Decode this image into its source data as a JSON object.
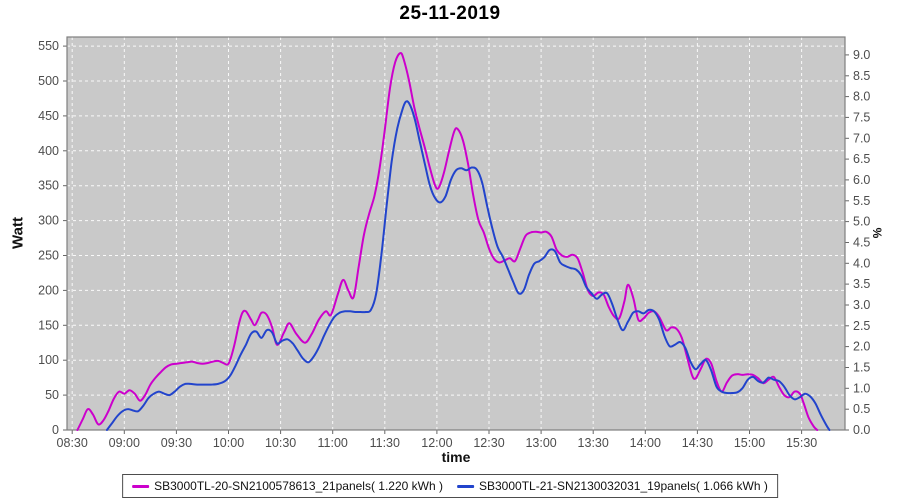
{
  "chart_data": {
    "type": "line",
    "title": "25-11-2019",
    "xlabel": "time",
    "ylabel_left": "Watt",
    "ylabel_right": "%",
    "grid": "white dashed, on",
    "legend_position": "bottom-center",
    "plot_bg_color": "#c9c9c9",
    "plot_border_color": "#7f7f7f",
    "tick_text_color": "#4d4d4d",
    "x_domain": [
      "08:27",
      "15:55"
    ],
    "y_left_domain": [
      0,
      563
    ],
    "y_right_domain": [
      0,
      9.43
    ],
    "x_ticks": [
      "08:30",
      "09:00",
      "09:30",
      "10:00",
      "10:30",
      "11:00",
      "11:30",
      "12:00",
      "12:30",
      "13:00",
      "13:30",
      "14:00",
      "14:30",
      "15:00",
      "15:30"
    ],
    "y_left_ticks": [
      0,
      50,
      100,
      150,
      200,
      250,
      300,
      350,
      400,
      450,
      500,
      550
    ],
    "y_right_ticks": [
      "0.0",
      "0.5",
      "1.0",
      "1.5",
      "2.0",
      "2.5",
      "3.0",
      "3.5",
      "4.0",
      "4.5",
      "5.0",
      "5.5",
      "6.0",
      "6.5",
      "7.0",
      "7.5",
      "8.0",
      "8.5",
      "9.0"
    ],
    "series": [
      {
        "name": "SB3000TL-20-SN2100578613_21panels( 1.220 kWh )",
        "color": "#cc00cc",
        "points": [
          [
            "08:33",
            0
          ],
          [
            "08:36",
            15
          ],
          [
            "08:39",
            30
          ],
          [
            "08:42",
            22
          ],
          [
            "08:45",
            8
          ],
          [
            "08:48",
            14
          ],
          [
            "08:51",
            28
          ],
          [
            "08:54",
            45
          ],
          [
            "08:57",
            55
          ],
          [
            "09:00",
            52
          ],
          [
            "09:03",
            57
          ],
          [
            "09:06",
            52
          ],
          [
            "09:09",
            42
          ],
          [
            "09:12",
            50
          ],
          [
            "09:15",
            65
          ],
          [
            "09:18",
            75
          ],
          [
            "09:21",
            83
          ],
          [
            "09:24",
            90
          ],
          [
            "09:27",
            94
          ],
          [
            "09:30",
            95
          ],
          [
            "09:33",
            96
          ],
          [
            "09:36",
            97
          ],
          [
            "09:39",
            98
          ],
          [
            "09:42",
            96
          ],
          [
            "09:45",
            95
          ],
          [
            "09:48",
            96
          ],
          [
            "09:51",
            98
          ],
          [
            "09:54",
            99
          ],
          [
            "09:57",
            96
          ],
          [
            "10:00",
            95
          ],
          [
            "10:03",
            118
          ],
          [
            "10:06",
            152
          ],
          [
            "10:08",
            168
          ],
          [
            "10:10",
            170
          ],
          [
            "10:13",
            158
          ],
          [
            "10:15",
            150
          ],
          [
            "10:17",
            158
          ],
          [
            "10:19",
            168
          ],
          [
            "10:22",
            165
          ],
          [
            "10:25",
            148
          ],
          [
            "10:28",
            122
          ],
          [
            "10:32",
            140
          ],
          [
            "10:35",
            153
          ],
          [
            "10:39",
            138
          ],
          [
            "10:44",
            125
          ],
          [
            "10:48",
            138
          ],
          [
            "10:52",
            158
          ],
          [
            "10:56",
            170
          ],
          [
            "10:59",
            165
          ],
          [
            "11:03",
            195
          ],
          [
            "11:06",
            215
          ],
          [
            "11:09",
            200
          ],
          [
            "11:12",
            190
          ],
          [
            "11:15",
            235
          ],
          [
            "11:18",
            280
          ],
          [
            "11:21",
            310
          ],
          [
            "11:24",
            335
          ],
          [
            "11:27",
            375
          ],
          [
            "11:30",
            430
          ],
          [
            "11:33",
            490
          ],
          [
            "11:36",
            527
          ],
          [
            "11:39",
            540
          ],
          [
            "11:41",
            530
          ],
          [
            "11:44",
            500
          ],
          [
            "11:47",
            462
          ],
          [
            "11:50",
            432
          ],
          [
            "11:53",
            405
          ],
          [
            "11:56",
            375
          ],
          [
            "11:59",
            350
          ],
          [
            "12:01",
            347
          ],
          [
            "12:04",
            368
          ],
          [
            "12:07",
            400
          ],
          [
            "12:10",
            428
          ],
          [
            "12:12",
            431
          ],
          [
            "12:15",
            415
          ],
          [
            "12:18",
            380
          ],
          [
            "12:21",
            335
          ],
          [
            "12:24",
            300
          ],
          [
            "12:27",
            283
          ],
          [
            "12:30",
            260
          ],
          [
            "12:33",
            245
          ],
          [
            "12:36",
            240
          ],
          [
            "12:39",
            243
          ],
          [
            "12:42",
            246
          ],
          [
            "12:45",
            242
          ],
          [
            "12:48",
            260
          ],
          [
            "12:51",
            278
          ],
          [
            "12:54",
            283
          ],
          [
            "12:57",
            284
          ],
          [
            "13:00",
            283
          ],
          [
            "13:03",
            284
          ],
          [
            "13:06",
            277
          ],
          [
            "13:09",
            258
          ],
          [
            "13:12",
            250
          ],
          [
            "13:15",
            248
          ],
          [
            "13:18",
            251
          ],
          [
            "13:21",
            246
          ],
          [
            "13:24",
            225
          ],
          [
            "13:27",
            200
          ],
          [
            "13:30",
            192
          ],
          [
            "13:33",
            197
          ],
          [
            "13:36",
            194
          ],
          [
            "13:39",
            176
          ],
          [
            "13:42",
            163
          ],
          [
            "13:45",
            160
          ],
          [
            "13:48",
            185
          ],
          [
            "13:50",
            208
          ],
          [
            "13:53",
            190
          ],
          [
            "13:56",
            158
          ],
          [
            "13:59",
            160
          ],
          [
            "14:02",
            168
          ],
          [
            "14:05",
            170
          ],
          [
            "14:08",
            162
          ],
          [
            "14:12",
            143
          ],
          [
            "14:15",
            147
          ],
          [
            "14:18",
            145
          ],
          [
            "14:21",
            132
          ],
          [
            "14:24",
            105
          ],
          [
            "14:27",
            78
          ],
          [
            "14:29",
            74
          ],
          [
            "14:32",
            88
          ],
          [
            "14:35",
            102
          ],
          [
            "14:38",
            95
          ],
          [
            "14:41",
            70
          ],
          [
            "14:44",
            55
          ],
          [
            "14:47",
            68
          ],
          [
            "14:50",
            78
          ],
          [
            "14:53",
            80
          ],
          [
            "14:56",
            79
          ],
          [
            "14:59",
            80
          ],
          [
            "15:02",
            79
          ],
          [
            "15:05",
            74
          ],
          [
            "15:08",
            67
          ],
          [
            "15:11",
            72
          ],
          [
            "15:14",
            76
          ],
          [
            "15:17",
            62
          ],
          [
            "15:20",
            50
          ],
          [
            "15:23",
            47
          ],
          [
            "15:26",
            55
          ],
          [
            "15:29",
            52
          ],
          [
            "15:31",
            40
          ],
          [
            "15:34",
            18
          ],
          [
            "15:37",
            5
          ],
          [
            "15:39",
            0
          ]
        ]
      },
      {
        "name": "SB3000TL-21-SN2130032031_19panels( 1.066 kWh )",
        "color": "#2244cc",
        "points": [
          [
            "08:50",
            0
          ],
          [
            "08:53",
            10
          ],
          [
            "08:56",
            20
          ],
          [
            "08:59",
            27
          ],
          [
            "09:02",
            30
          ],
          [
            "09:05",
            28
          ],
          [
            "09:08",
            27
          ],
          [
            "09:11",
            35
          ],
          [
            "09:14",
            46
          ],
          [
            "09:17",
            52
          ],
          [
            "09:20",
            55
          ],
          [
            "09:23",
            52
          ],
          [
            "09:26",
            50
          ],
          [
            "09:29",
            55
          ],
          [
            "09:32",
            62
          ],
          [
            "09:35",
            66
          ],
          [
            "09:38",
            66
          ],
          [
            "09:42",
            65
          ],
          [
            "09:46",
            65
          ],
          [
            "09:50",
            65
          ],
          [
            "09:54",
            66
          ],
          [
            "09:58",
            70
          ],
          [
            "10:01",
            78
          ],
          [
            "10:04",
            92
          ],
          [
            "10:07",
            108
          ],
          [
            "10:10",
            122
          ],
          [
            "10:13",
            138
          ],
          [
            "10:16",
            141
          ],
          [
            "10:19",
            132
          ],
          [
            "10:22",
            143
          ],
          [
            "10:25",
            140
          ],
          [
            "10:28",
            124
          ],
          [
            "10:31",
            128
          ],
          [
            "10:34",
            130
          ],
          [
            "10:37",
            124
          ],
          [
            "10:40",
            113
          ],
          [
            "10:43",
            102
          ],
          [
            "10:46",
            97
          ],
          [
            "10:49",
            105
          ],
          [
            "10:52",
            118
          ],
          [
            "10:55",
            135
          ],
          [
            "10:58",
            150
          ],
          [
            "11:01",
            162
          ],
          [
            "11:04",
            168
          ],
          [
            "11:07",
            170
          ],
          [
            "11:10",
            170
          ],
          [
            "11:13",
            169
          ],
          [
            "11:16",
            169
          ],
          [
            "11:19",
            169
          ],
          [
            "11:22",
            172
          ],
          [
            "11:25",
            195
          ],
          [
            "11:28",
            250
          ],
          [
            "11:31",
            320
          ],
          [
            "11:34",
            385
          ],
          [
            "11:37",
            430
          ],
          [
            "11:40",
            458
          ],
          [
            "11:42",
            470
          ],
          [
            "11:44",
            468
          ],
          [
            "11:47",
            448
          ],
          [
            "11:50",
            415
          ],
          [
            "11:53",
            382
          ],
          [
            "11:56",
            350
          ],
          [
            "11:59",
            332
          ],
          [
            "12:02",
            326
          ],
          [
            "12:05",
            335
          ],
          [
            "12:08",
            358
          ],
          [
            "12:11",
            372
          ],
          [
            "12:14",
            375
          ],
          [
            "12:17",
            372
          ],
          [
            "12:20",
            376
          ],
          [
            "12:23",
            373
          ],
          [
            "12:26",
            355
          ],
          [
            "12:29",
            320
          ],
          [
            "12:32",
            288
          ],
          [
            "12:35",
            262
          ],
          [
            "12:38",
            248
          ],
          [
            "12:41",
            230
          ],
          [
            "12:44",
            212
          ],
          [
            "12:47",
            196
          ],
          [
            "12:50",
            200
          ],
          [
            "12:53",
            222
          ],
          [
            "12:56",
            238
          ],
          [
            "12:59",
            242
          ],
          [
            "13:02",
            248
          ],
          [
            "13:05",
            258
          ],
          [
            "13:08",
            256
          ],
          [
            "13:11",
            240
          ],
          [
            "13:14",
            235
          ],
          [
            "13:17",
            232
          ],
          [
            "13:20",
            230
          ],
          [
            "13:23",
            222
          ],
          [
            "13:26",
            205
          ],
          [
            "13:29",
            196
          ],
          [
            "13:32",
            188
          ],
          [
            "13:35",
            194
          ],
          [
            "13:38",
            196
          ],
          [
            "13:41",
            180
          ],
          [
            "13:44",
            158
          ],
          [
            "13:47",
            143
          ],
          [
            "13:50",
            155
          ],
          [
            "13:53",
            168
          ],
          [
            "13:56",
            170
          ],
          [
            "13:59",
            167
          ],
          [
            "14:02",
            172
          ],
          [
            "14:05",
            170
          ],
          [
            "14:08",
            158
          ],
          [
            "14:11",
            135
          ],
          [
            "14:14",
            120
          ],
          [
            "14:17",
            122
          ],
          [
            "14:20",
            126
          ],
          [
            "14:23",
            118
          ],
          [
            "14:26",
            98
          ],
          [
            "14:29",
            87
          ],
          [
            "14:32",
            95
          ],
          [
            "14:35",
            100
          ],
          [
            "14:38",
            85
          ],
          [
            "14:41",
            62
          ],
          [
            "14:44",
            55
          ],
          [
            "14:47",
            53
          ],
          [
            "14:50",
            53
          ],
          [
            "14:53",
            54
          ],
          [
            "14:56",
            60
          ],
          [
            "14:59",
            72
          ],
          [
            "15:02",
            76
          ],
          [
            "15:05",
            70
          ],
          [
            "15:08",
            68
          ],
          [
            "15:11",
            75
          ],
          [
            "15:14",
            72
          ],
          [
            "15:17",
            70
          ],
          [
            "15:20",
            62
          ],
          [
            "15:23",
            50
          ],
          [
            "15:26",
            44
          ],
          [
            "15:29",
            47
          ],
          [
            "15:32",
            52
          ],
          [
            "15:35",
            48
          ],
          [
            "15:38",
            38
          ],
          [
            "15:41",
            22
          ],
          [
            "15:44",
            8
          ],
          [
            "15:46",
            0
          ]
        ]
      }
    ]
  }
}
